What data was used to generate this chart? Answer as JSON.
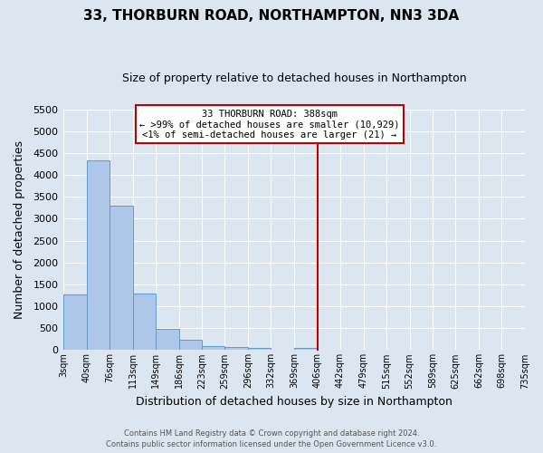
{
  "title": "33, THORBURN ROAD, NORTHAMPTON, NN3 3DA",
  "subtitle": "Size of property relative to detached houses in Northampton",
  "xlabel": "Distribution of detached houses by size in Northampton",
  "ylabel": "Number of detached properties",
  "bar_color": "#aec6e8",
  "bar_edge_color": "#5b9bd5",
  "background_color": "#dce6f1",
  "grid_color": "#ffffff",
  "bin_edges": [
    3,
    40,
    76,
    113,
    149,
    186,
    223,
    259,
    296,
    332,
    369,
    406,
    442,
    479,
    515,
    552,
    589,
    625,
    662,
    698,
    735
  ],
  "bar_heights": [
    1270,
    4330,
    3290,
    1290,
    480,
    230,
    100,
    65,
    55,
    0,
    55,
    0,
    0,
    0,
    0,
    0,
    0,
    0,
    0,
    0
  ],
  "tick_labels": [
    "3sqm",
    "40sqm",
    "76sqm",
    "113sqm",
    "149sqm",
    "186sqm",
    "223sqm",
    "259sqm",
    "296sqm",
    "332sqm",
    "369sqm",
    "406sqm",
    "442sqm",
    "479sqm",
    "515sqm",
    "552sqm",
    "589sqm",
    "625sqm",
    "662sqm",
    "698sqm",
    "735sqm"
  ],
  "ylim": [
    0,
    5500
  ],
  "yticks": [
    0,
    500,
    1000,
    1500,
    2000,
    2500,
    3000,
    3500,
    4000,
    4500,
    5000,
    5500
  ],
  "vline_x": 406,
  "vline_color": "#c00000",
  "annotation_title": "33 THORBURN ROAD: 388sqm",
  "annotation_line1": "← >99% of detached houses are smaller (10,929)",
  "annotation_line2": "<1% of semi-detached houses are larger (21) →",
  "annotation_box_edge": "#c00000",
  "footer_line1": "Contains HM Land Registry data © Crown copyright and database right 2024.",
  "footer_line2": "Contains public sector information licensed under the Open Government Licence v3.0."
}
